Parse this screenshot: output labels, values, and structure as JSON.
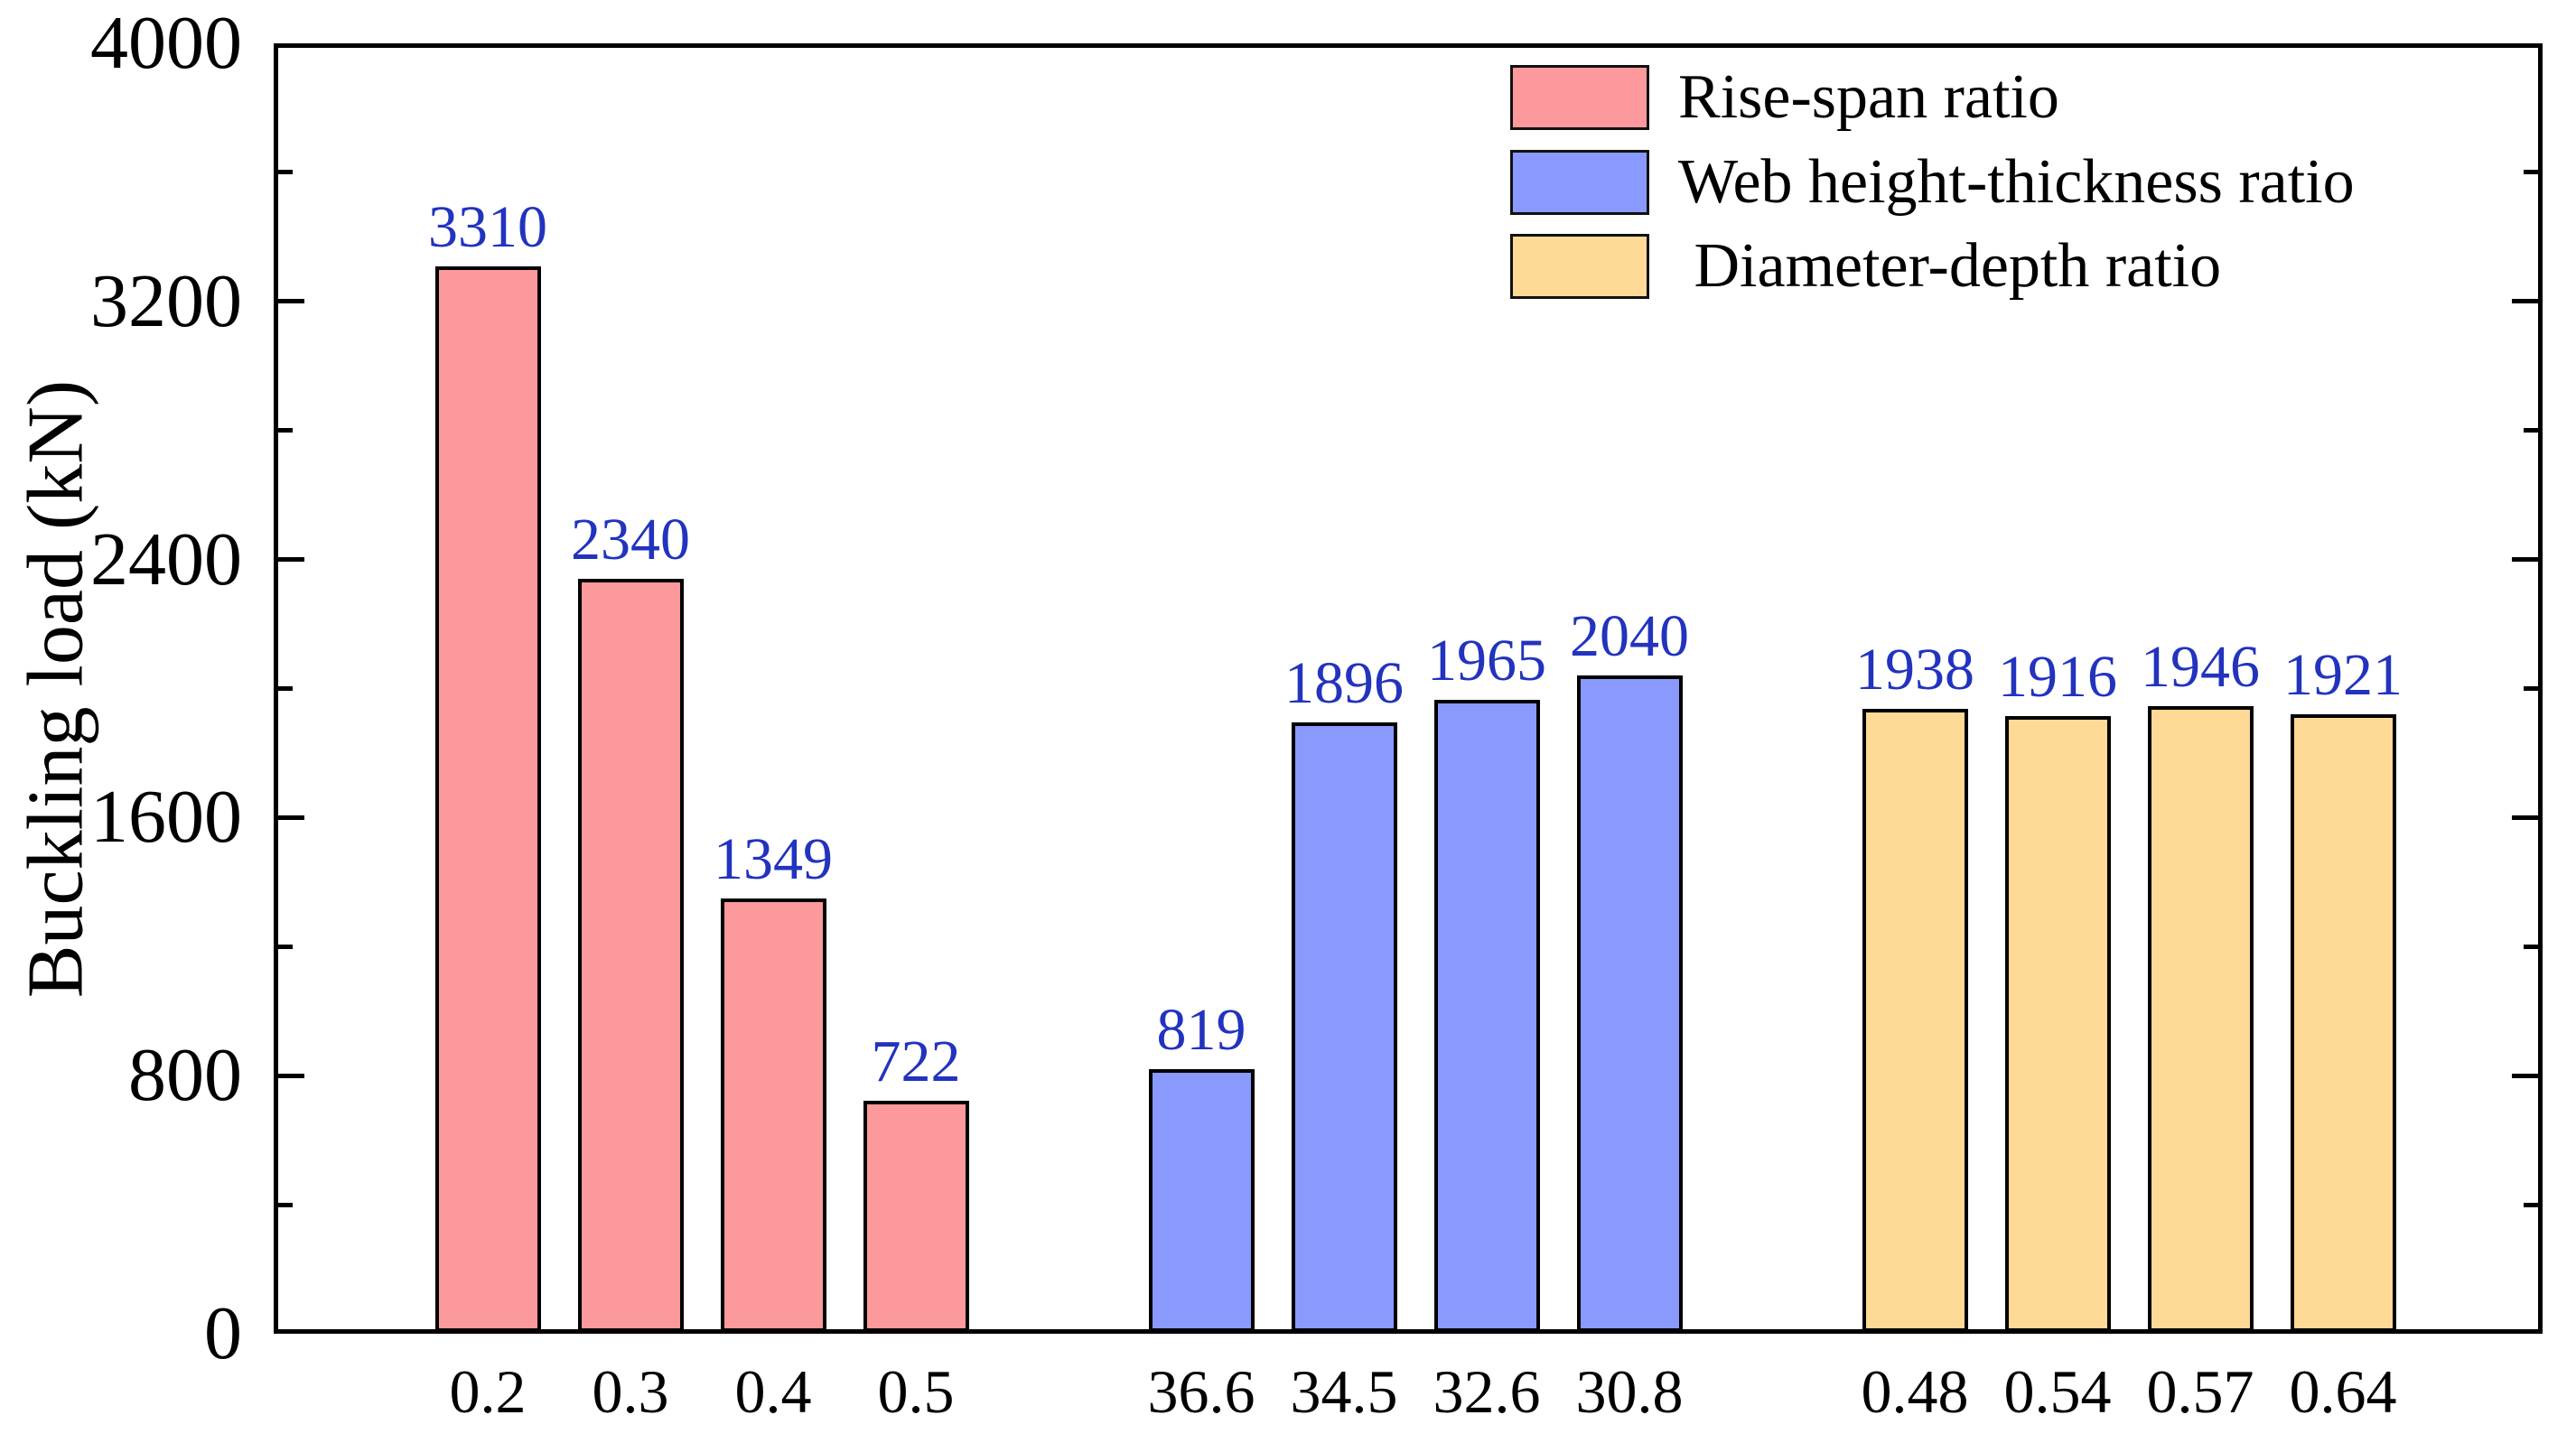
{
  "chart_data": {
    "type": "bar",
    "title": "",
    "xlabel": "",
    "ylabel": "Buckling load (kN)",
    "ylim": [
      0,
      4000
    ],
    "y_major_ticks": [
      "0",
      "800",
      "1600",
      "2400",
      "3200",
      "4000"
    ],
    "y_major_tick_values": [
      0,
      800,
      1600,
      2400,
      3200,
      4000
    ],
    "y_minor_step": 400,
    "grid": false,
    "legend_position": "top-right",
    "axis_color": "#000000",
    "value_label_color": "#2233be",
    "series": [
      {
        "name": "Rise-span ratio",
        "color": "#fc999c",
        "categories": [
          "0.2",
          "0.3",
          "0.4",
          "0.5"
        ],
        "values": [
          3310,
          2340,
          1349,
          722
        ]
      },
      {
        "name": "Web height-thickness ratio",
        "color": "#8a99fe",
        "categories": [
          "36.6",
          "34.5",
          "32.6",
          "30.8"
        ],
        "values": [
          819,
          1896,
          1965,
          2040
        ]
      },
      {
        "name": " Diameter-depth ratio",
        "color": "#ffd996",
        "categories": [
          "0.48",
          "0.54",
          "0.57",
          "0.64"
        ],
        "values": [
          1938,
          1916,
          1946,
          1921
        ]
      }
    ]
  }
}
